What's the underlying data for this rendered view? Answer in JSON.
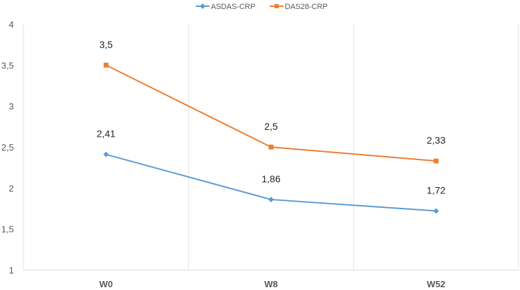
{
  "chart_data": {
    "type": "line",
    "categories": [
      "W0",
      "W8",
      "W52"
    ],
    "series": [
      {
        "name": "ASDAS-CRP",
        "values": [
          2.41,
          1.86,
          1.72
        ],
        "labels": [
          "2,41",
          "1,86",
          "1,72"
        ],
        "color": "#5B9BD5",
        "marker": "diamond"
      },
      {
        "name": "DAS28-CRP",
        "values": [
          3.5,
          2.5,
          2.33
        ],
        "labels": [
          "3,5",
          "2,5",
          "2,33"
        ],
        "color": "#ED7D31",
        "marker": "square"
      }
    ],
    "ylim": [
      1,
      4
    ],
    "yticks": [
      1,
      1.5,
      2,
      2.5,
      3,
      3.5,
      4
    ],
    "ytick_labels": [
      "1",
      "1,5",
      "2",
      "2,5",
      "3",
      "3,5",
      "4"
    ],
    "grid": "vertical",
    "legend": "top"
  }
}
